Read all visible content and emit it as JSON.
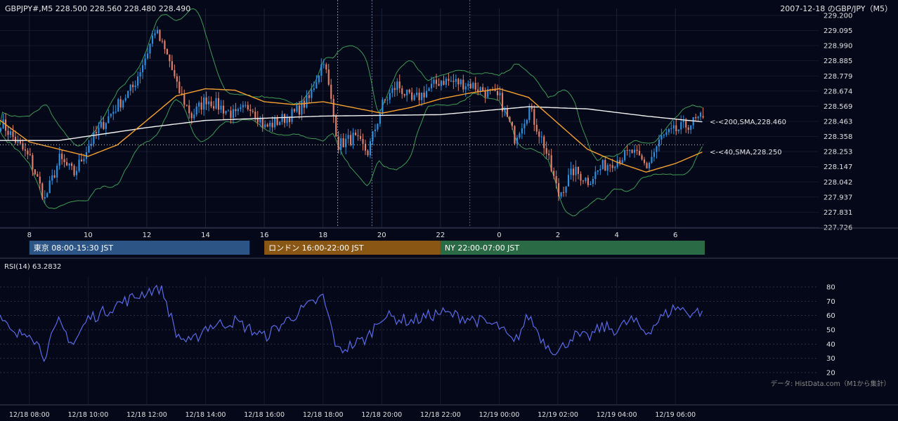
{
  "header": {
    "symbol_line": "GBPJPY#,M5 228.500 228.560 228.480 228.490",
    "date_title": "2007-12-18 のGBP/JPY（M5）"
  },
  "price_axis": {
    "ticks": [
      "229.200",
      "229.095",
      "228.990",
      "228.885",
      "228.779",
      "228.674",
      "228.569",
      "228.463",
      "228.358",
      "228.253",
      "228.147",
      "228.042",
      "227.937",
      "227.831",
      "227.726"
    ]
  },
  "hour_axis": {
    "ticks": [
      "8",
      "10",
      "12",
      "14",
      "16",
      "18",
      "20",
      "22",
      "0",
      "2",
      "4",
      "6"
    ]
  },
  "sessions": [
    {
      "label": "東京 08:00-15:30 JST",
      "color": "#2c5485"
    },
    {
      "label": "ロンドン 16:00-22:00 JST",
      "color": "#8a5614"
    },
    {
      "label": "NY 22:00-07:00 JST",
      "color": "#2a6a45"
    }
  ],
  "annotations": {
    "sma200": "<-<200,SMA,228.460",
    "sma40": "<-<40,SMA,228.250"
  },
  "colors": {
    "background": "#050818",
    "bull": "#2f8fe0",
    "bear": "#e0806a",
    "sma200": "#f2f2f2",
    "sma40": "#f5a030",
    "bollinger": "#3f9a55",
    "rsi": "#5a6ae8"
  },
  "rsi_panel": {
    "title": "RSI(14) 63.2832",
    "ticks": [
      "80",
      "70",
      "60",
      "50",
      "40",
      "30",
      "20"
    ],
    "credit": "データ: HistData.com（M1から集計）"
  },
  "time_axis": {
    "ticks": [
      "12/18 08:00",
      "12/18 10:00",
      "12/18 12:00",
      "12/18 14:00",
      "12/18 16:00",
      "12/18 18:00",
      "12/18 20:00",
      "12/18 22:00",
      "12/19 00:00",
      "12/19 02:00",
      "12/19 04:00",
      "12/19 06:00"
    ]
  },
  "chart_data": [
    {
      "type": "candlestick",
      "title": "GBPJPY#,M5",
      "x_start": "12/18 07:00",
      "interval_minutes": 5,
      "ylim": [
        227.726,
        229.2
      ],
      "last_ohlc": {
        "open": 228.5,
        "high": 228.56,
        "low": 228.48,
        "close": 228.49
      },
      "close_path": [
        {
          "time": "12/18 07:00",
          "close": 228.46
        },
        {
          "time": "12/18 07:30",
          "close": 228.33
        },
        {
          "time": "12/18 08:00",
          "close": 228.2
        },
        {
          "time": "12/18 08:30",
          "close": 227.92
        },
        {
          "time": "12/18 09:00",
          "close": 228.2
        },
        {
          "time": "12/18 09:30",
          "close": 228.1
        },
        {
          "time": "12/18 10:00",
          "close": 228.3
        },
        {
          "time": "12/18 10:30",
          "close": 228.45
        },
        {
          "time": "12/18 11:00",
          "close": 228.58
        },
        {
          "time": "12/18 11:30",
          "close": 228.7
        },
        {
          "time": "12/18 12:00",
          "close": 228.95
        },
        {
          "time": "12/18 12:15",
          "close": 229.1
        },
        {
          "time": "12/18 12:45",
          "close": 228.88
        },
        {
          "time": "12/18 13:00",
          "close": 228.7
        },
        {
          "time": "12/18 13:30",
          "close": 228.5
        },
        {
          "time": "12/18 14:00",
          "close": 228.62
        },
        {
          "time": "12/18 15:00",
          "close": 228.5
        },
        {
          "time": "12/18 15:30",
          "close": 228.58
        },
        {
          "time": "12/18 16:00",
          "close": 228.42
        },
        {
          "time": "12/18 17:00",
          "close": 228.52
        },
        {
          "time": "12/18 17:30",
          "close": 228.62
        },
        {
          "time": "12/18 18:00",
          "close": 228.9
        },
        {
          "time": "12/18 18:30",
          "close": 228.3
        },
        {
          "time": "12/18 19:00",
          "close": 228.35
        },
        {
          "time": "12/18 19:30",
          "close": 228.25
        },
        {
          "time": "12/18 20:00",
          "close": 228.58
        },
        {
          "time": "12/18 20:30",
          "close": 228.72
        },
        {
          "time": "12/18 21:00",
          "close": 228.6
        },
        {
          "time": "12/18 22:00",
          "close": 228.75
        },
        {
          "time": "12/18 23:00",
          "close": 228.72
        },
        {
          "time": "12/19 00:00",
          "close": 228.62
        },
        {
          "time": "12/19 00:30",
          "close": 228.35
        },
        {
          "time": "12/19 01:00",
          "close": 228.55
        },
        {
          "time": "12/19 01:30",
          "close": 228.3
        },
        {
          "time": "12/19 02:00",
          "close": 227.95
        },
        {
          "time": "12/19 02:30",
          "close": 228.12
        },
        {
          "time": "12/19 03:00",
          "close": 228.05
        },
        {
          "time": "12/19 03:30",
          "close": 228.15
        },
        {
          "time": "12/19 04:00",
          "close": 228.2
        },
        {
          "time": "12/19 04:30",
          "close": 228.25
        },
        {
          "time": "12/19 05:00",
          "close": 228.15
        },
        {
          "time": "12/19 05:30",
          "close": 228.35
        },
        {
          "time": "12/19 06:00",
          "close": 228.4
        },
        {
          "time": "12/19 06:30",
          "close": 228.45
        },
        {
          "time": "12/19 06:55",
          "close": 228.49
        }
      ],
      "sma200_path": [
        {
          "time": "12/18 07:00",
          "close": 228.33
        },
        {
          "time": "12/18 09:00",
          "close": 228.33
        },
        {
          "time": "12/18 12:00",
          "close": 228.42
        },
        {
          "time": "12/18 14:00",
          "close": 228.47
        },
        {
          "time": "12/18 18:00",
          "close": 228.5
        },
        {
          "time": "12/18 22:00",
          "close": 228.51
        },
        {
          "time": "12/19 01:00",
          "close": 228.565
        },
        {
          "time": "12/19 03:00",
          "close": 228.55
        },
        {
          "time": "12/19 05:00",
          "close": 228.5
        },
        {
          "time": "12/19 06:55",
          "close": 228.46
        }
      ],
      "sma40_path": [
        {
          "time": "12/18 07:00",
          "close": 228.47
        },
        {
          "time": "12/18 08:00",
          "close": 228.32
        },
        {
          "time": "12/18 09:00",
          "close": 228.27
        },
        {
          "time": "12/18 10:00",
          "close": 228.22
        },
        {
          "time": "12/18 11:00",
          "close": 228.3
        },
        {
          "time": "12/18 12:00",
          "close": 228.47
        },
        {
          "time": "12/18 13:00",
          "close": 228.64
        },
        {
          "time": "12/18 14:00",
          "close": 228.69
        },
        {
          "time": "12/18 15:00",
          "close": 228.68
        },
        {
          "time": "12/18 16:00",
          "close": 228.6
        },
        {
          "time": "12/18 17:00",
          "close": 228.58
        },
        {
          "time": "12/18 18:00",
          "close": 228.6
        },
        {
          "time": "12/18 19:00",
          "close": 228.56
        },
        {
          "time": "12/18 20:00",
          "close": 228.52
        },
        {
          "time": "12/18 21:00",
          "close": 228.56
        },
        {
          "time": "12/18 22:00",
          "close": 228.62
        },
        {
          "time": "12/18 23:00",
          "close": 228.66
        },
        {
          "time": "12/19 00:00",
          "close": 228.69
        },
        {
          "time": "12/19 01:00",
          "close": 228.63
        },
        {
          "time": "12/19 02:00",
          "close": 228.45
        },
        {
          "time": "12/19 03:00",
          "close": 228.27
        },
        {
          "time": "12/19 04:00",
          "close": 228.18
        },
        {
          "time": "12/19 05:00",
          "close": 228.11
        },
        {
          "time": "12/19 06:00",
          "close": 228.17
        },
        {
          "time": "12/19 06:55",
          "close": 228.25
        }
      ]
    },
    {
      "type": "line",
      "title": "RSI(14) 63.2832",
      "ylim": [
        20,
        80
      ],
      "last_value": 63.2832,
      "points": [
        {
          "time": "12/18 07:00",
          "rsi": 58
        },
        {
          "time": "12/18 07:30",
          "rsi": 45
        },
        {
          "time": "12/18 08:00",
          "rsi": 50
        },
        {
          "time": "12/18 08:30",
          "rsi": 32
        },
        {
          "time": "12/18 09:00",
          "rsi": 55
        },
        {
          "time": "12/18 09:30",
          "rsi": 40
        },
        {
          "time": "12/18 10:00",
          "rsi": 58
        },
        {
          "time": "12/18 10:30",
          "rsi": 62
        },
        {
          "time": "12/18 11:00",
          "rsi": 68
        },
        {
          "time": "12/18 11:30",
          "rsi": 72
        },
        {
          "time": "12/18 12:00",
          "rsi": 77
        },
        {
          "time": "12/18 12:30",
          "rsi": 80
        },
        {
          "time": "12/18 13:00",
          "rsi": 47
        },
        {
          "time": "12/18 13:30",
          "rsi": 40
        },
        {
          "time": "12/18 14:00",
          "rsi": 52
        },
        {
          "time": "12/18 15:00",
          "rsi": 56
        },
        {
          "time": "12/18 16:00",
          "rsi": 45
        },
        {
          "time": "12/18 17:00",
          "rsi": 60
        },
        {
          "time": "12/18 18:00",
          "rsi": 73
        },
        {
          "time": "12/18 18:30",
          "rsi": 35
        },
        {
          "time": "12/18 19:30",
          "rsi": 44
        },
        {
          "time": "12/18 20:00",
          "rsi": 60
        },
        {
          "time": "12/18 21:00",
          "rsi": 56
        },
        {
          "time": "12/18 22:00",
          "rsi": 62
        },
        {
          "time": "12/18 23:00",
          "rsi": 58
        },
        {
          "time": "12/19 00:00",
          "rsi": 52
        },
        {
          "time": "12/19 00:30",
          "rsi": 40
        },
        {
          "time": "12/19 01:00",
          "rsi": 60
        },
        {
          "time": "12/19 01:30",
          "rsi": 42
        },
        {
          "time": "12/19 02:00",
          "rsi": 34
        },
        {
          "time": "12/19 02:30",
          "rsi": 46
        },
        {
          "time": "12/19 03:00",
          "rsi": 44
        },
        {
          "time": "12/19 03:30",
          "rsi": 52
        },
        {
          "time": "12/19 04:00",
          "rsi": 50
        },
        {
          "time": "12/19 04:30",
          "rsi": 57
        },
        {
          "time": "12/19 05:00",
          "rsi": 48
        },
        {
          "time": "12/19 05:30",
          "rsi": 58
        },
        {
          "time": "12/19 06:00",
          "rsi": 66
        },
        {
          "time": "12/19 06:30",
          "rsi": 62
        },
        {
          "time": "12/19 06:55",
          "rsi": 63.2832
        }
      ]
    }
  ]
}
